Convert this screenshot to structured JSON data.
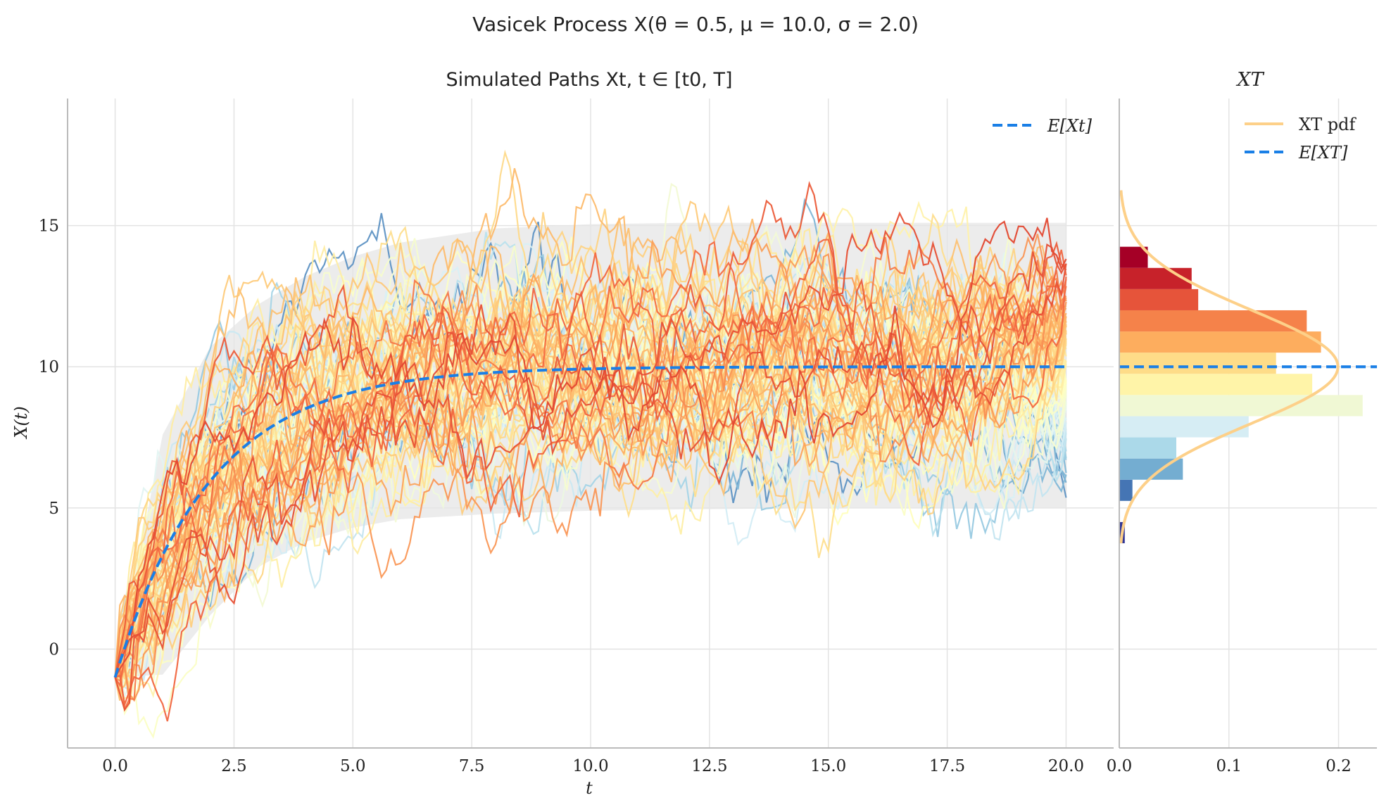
{
  "figure": {
    "suptitle": "Vasicek Process X(θ = 0.5, μ = 10.0, σ = 2.0)"
  },
  "chart_data": [
    {
      "type": "line",
      "title": "Simulated Paths Xt, t ∈ [t0, T]",
      "xlabel": "t",
      "ylabel": "X(t)",
      "xlim": [
        -1.0,
        21.0
      ],
      "ylim": [
        -3.5,
        19.5
      ],
      "xticks": [
        0.0,
        2.5,
        5.0,
        7.5,
        10.0,
        12.5,
        15.0,
        17.5,
        20.0
      ],
      "xtick_labels": [
        "0.0",
        "2.5",
        "5.0",
        "7.5",
        "10.0",
        "12.5",
        "15.0",
        "17.5",
        "20.0"
      ],
      "yticks": [
        0,
        5,
        10,
        15
      ],
      "ytick_labels": [
        "0",
        "5",
        "10",
        "15"
      ],
      "grid": true,
      "legend_position": "top-right",
      "process": {
        "theta": 0.5,
        "mu": 10.0,
        "sigma": 2.0,
        "x0": -1.0,
        "t0": 0.0,
        "T": 20.0
      },
      "expectation_series": {
        "name": "E[Xt]",
        "color": "#1a7fe6",
        "style": "dashed",
        "t": [
          0,
          0.5,
          1,
          1.5,
          2,
          2.5,
          3,
          3.5,
          4,
          5,
          6,
          7,
          8,
          9,
          10,
          12,
          14,
          16,
          18,
          20
        ],
        "values": [
          -1.0,
          1.43,
          3.33,
          4.82,
          5.95,
          6.86,
          7.54,
          8.07,
          8.51,
          9.1,
          9.45,
          9.67,
          9.8,
          9.88,
          9.93,
          9.97,
          9.99,
          10.0,
          10.0,
          10.0
        ]
      },
      "confidence_band": {
        "color": "#e6e6e6",
        "t": [
          0,
          1,
          2,
          3,
          4,
          5,
          6,
          8,
          10,
          12,
          15,
          20
        ],
        "lower": [
          -1.0,
          -0.9,
          1.2,
          2.9,
          3.8,
          4.3,
          4.6,
          4.8,
          4.9,
          4.95,
          5.0,
          5.0
        ],
        "upper": [
          -1.0,
          7.6,
          10.7,
          12.2,
          13.2,
          13.9,
          14.4,
          14.9,
          15.05,
          15.1,
          15.1,
          15.1
        ]
      },
      "paths": {
        "count": 100,
        "colormap": "RdYlBu_r",
        "colormap_stops": [
          "#313695",
          "#4575b4",
          "#74add1",
          "#abd9e9",
          "#e0f3f8",
          "#ffffbf",
          "#fee090",
          "#fdae61",
          "#f46d43",
          "#d73027",
          "#a50026"
        ]
      }
    },
    {
      "type": "bar",
      "orientation": "horizontal",
      "title": "XT",
      "xlim": [
        0.0,
        0.235
      ],
      "xticks": [
        0.0,
        0.1,
        0.2
      ],
      "xtick_labels": [
        "0.0",
        "0.1",
        "0.2"
      ],
      "shared_ylim": [
        -3.5,
        19.5
      ],
      "grid": true,
      "legend_position": "top-right",
      "bins": [
        {
          "from": 3.75,
          "to": 4.5,
          "density": 0.005,
          "color": "#313695"
        },
        {
          "from": 5.25,
          "to": 6.0,
          "density": 0.012,
          "color": "#4575b4"
        },
        {
          "from": 6.0,
          "to": 6.75,
          "density": 0.058,
          "color": "#74add1"
        },
        {
          "from": 6.75,
          "to": 7.5,
          "density": 0.052,
          "color": "#abd9e9"
        },
        {
          "from": 7.5,
          "to": 8.25,
          "density": 0.118,
          "color": "#d6edf4"
        },
        {
          "from": 8.25,
          "to": 9.0,
          "density": 0.222,
          "color": "#f0f8d4"
        },
        {
          "from": 9.0,
          "to": 9.75,
          "density": 0.176,
          "color": "#fff4a8"
        },
        {
          "from": 9.75,
          "to": 10.5,
          "density": 0.143,
          "color": "#fedc88"
        },
        {
          "from": 10.5,
          "to": 11.25,
          "density": 0.184,
          "color": "#fdad5e"
        },
        {
          "from": 11.25,
          "to": 12.0,
          "density": 0.171,
          "color": "#f5824a"
        },
        {
          "from": 12.0,
          "to": 12.75,
          "density": 0.072,
          "color": "#e6543a"
        },
        {
          "from": 12.75,
          "to": 13.5,
          "density": 0.066,
          "color": "#c7222a"
        },
        {
          "from": 13.5,
          "to": 14.25,
          "density": 0.026,
          "color": "#a50026"
        }
      ],
      "pdf_series": {
        "name": "XT pdf",
        "color": "#fdd089",
        "mean": 10.0,
        "std": 2.0
      },
      "mean_line": {
        "name": "E[XT]",
        "color": "#1a7fe6",
        "value": 10.0,
        "style": "dashed"
      }
    }
  ]
}
